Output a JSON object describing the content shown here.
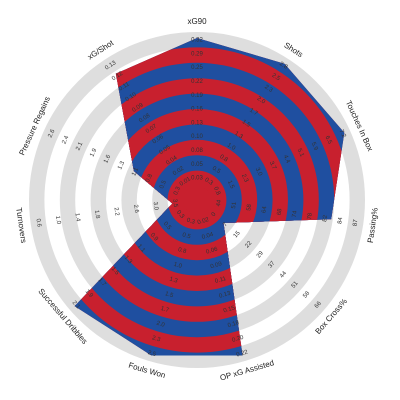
{
  "chart_data": {
    "type": "radar",
    "title": "",
    "grid": true,
    "band_colors": [
      "#c8202e",
      "#1f4fa0"
    ],
    "ring_colors": [
      "#dedede",
      "#ffffff"
    ],
    "axes": [
      {
        "name": "xG90",
        "ticks": [
          "0.03",
          "0.05",
          "0.08",
          "0.10",
          "0.13",
          "0.16",
          "0.19",
          "0.22",
          "0.25",
          "0.29",
          "0.32"
        ],
        "value": 0.32
      },
      {
        "name": "Shots",
        "ticks": [
          "0.3",
          "0.5",
          "0.8",
          "1.0",
          "1.3",
          "1.5",
          "1.7",
          "2.0",
          "2.3",
          "2.5",
          "2.8"
        ],
        "value": 2.8
      },
      {
        "name": "Touches In Box",
        "ticks": [
          "0.8",
          "1.5",
          "2.3",
          "3.0",
          "3.7",
          "4.4",
          "5.1",
          "5.9",
          "6.5",
          "7.2"
        ],
        "value": 7.2
      },
      {
        "name": "Passing%",
        "ticks": [
          "44",
          "51",
          "58",
          "64",
          "68",
          "74",
          "78",
          "82",
          "84",
          "87"
        ],
        "value": 79
      },
      {
        "name": "Box Cross%",
        "ticks": [
          "0",
          "7",
          "15",
          "22",
          "29",
          "37",
          "44",
          "51",
          "58",
          "66"
        ],
        "value": 7
      },
      {
        "name": "OP xG Assisted",
        "ticks": [
          "0.02",
          "0.04",
          "0.06",
          "0.09",
          "0.11",
          "0.13",
          "0.15",
          "0.18",
          "0.20",
          "0.22"
        ],
        "value": 0.22
      },
      {
        "name": "Fouls Won",
        "ticks": [
          "0.3",
          "0.5",
          "0.8",
          "1.0",
          "1.3",
          "1.5",
          "1.7",
          "2.0",
          "2.3",
          "2.5"
        ],
        "value": 2.5
      },
      {
        "name": "Successful Dribbles",
        "ticks": [
          "0.3",
          "0.5",
          "0.9",
          "1.1",
          "1.3",
          "1.5",
          "1.7",
          "1.9",
          "2.1"
        ],
        "value": 2.1
      },
      {
        "name": "Turnovers",
        "ticks": [
          "3.5",
          "3.0",
          "2.6",
          "2.2",
          "1.8",
          "1.4",
          "1.0",
          "0.6"
        ],
        "value": 3.4
      },
      {
        "name": "Pressure Regains",
        "ticks": [
          "0.3",
          "0.5",
          "0.8",
          "1.1",
          "1.3",
          "1.6",
          "1.9",
          "2.1",
          "2.4",
          "2.6"
        ],
        "value": 1.1
      },
      {
        "name": "xG/Shot",
        "ticks": [
          "0.01",
          "0.02",
          "0.04",
          "0.05",
          "0.06",
          "0.07",
          "0.08",
          "0.09",
          "0.10",
          "0.11",
          "0.12",
          "0.13"
        ],
        "value": 0.12
      }
    ]
  }
}
